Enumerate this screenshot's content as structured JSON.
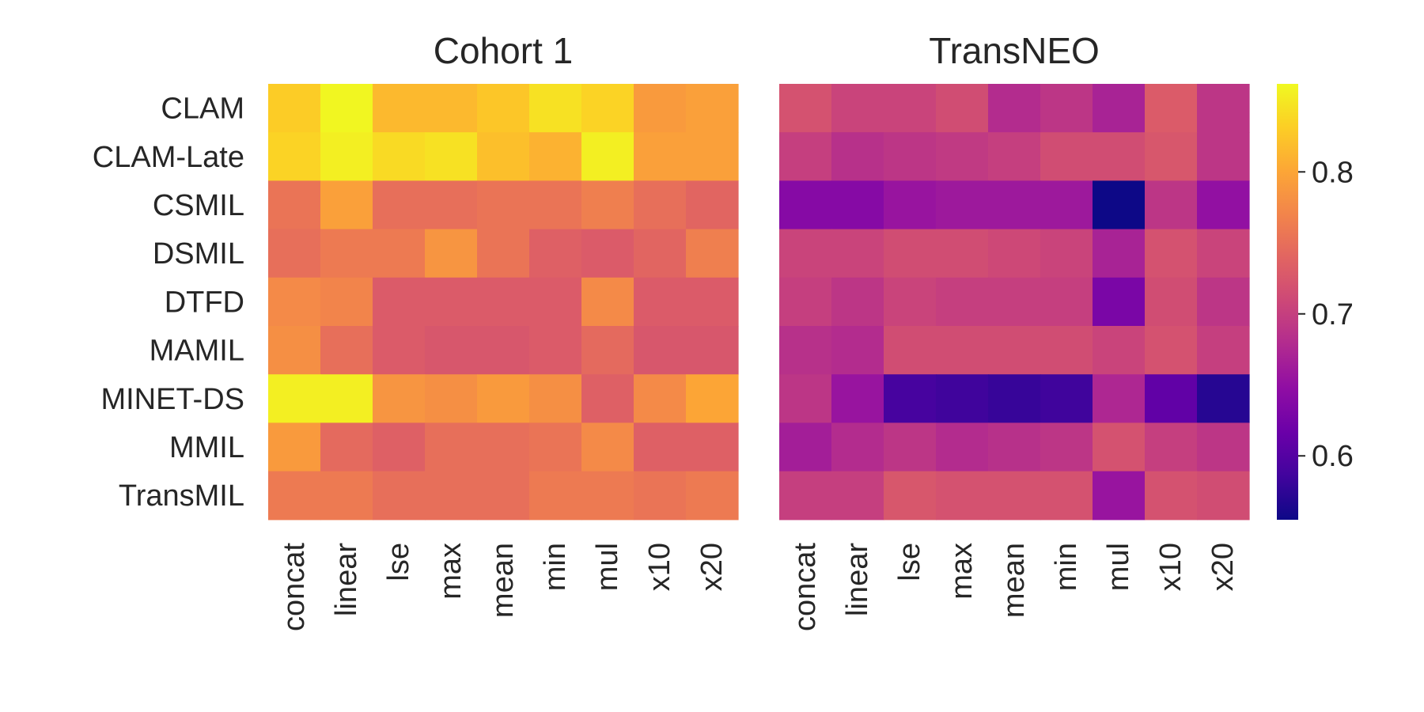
{
  "chart_data": {
    "type": "heatmap",
    "rows": [
      "CLAM",
      "CLAM-Late",
      "CSMIL",
      "DSMIL",
      "DTFD",
      "MAMIL",
      "MINET-DS",
      "MMIL",
      "TransMIL"
    ],
    "columns": [
      "concat",
      "linear",
      "lse",
      "max",
      "mean",
      "min",
      "mul",
      "x10",
      "x20"
    ],
    "colormap": "plasma",
    "vmin": 0.555,
    "vmax": 0.862,
    "colorbar_ticks": [
      "0.6",
      "0.7",
      "0.8"
    ],
    "colorbar_tick_values": [
      0.6,
      0.7,
      0.8
    ],
    "panels": [
      {
        "title": "Cohort 1",
        "values": [
          [
            0.83,
            0.86,
            0.815,
            0.815,
            0.825,
            0.845,
            0.835,
            0.79,
            0.795
          ],
          [
            0.835,
            0.855,
            0.84,
            0.845,
            0.82,
            0.81,
            0.855,
            0.795,
            0.795
          ],
          [
            0.755,
            0.795,
            0.75,
            0.75,
            0.755,
            0.755,
            0.765,
            0.75,
            0.74
          ],
          [
            0.75,
            0.76,
            0.76,
            0.785,
            0.755,
            0.735,
            0.73,
            0.74,
            0.765
          ],
          [
            0.775,
            0.77,
            0.73,
            0.73,
            0.73,
            0.73,
            0.775,
            0.73,
            0.73
          ],
          [
            0.78,
            0.75,
            0.73,
            0.725,
            0.725,
            0.73,
            0.745,
            0.725,
            0.725
          ],
          [
            0.855,
            0.855,
            0.785,
            0.78,
            0.79,
            0.78,
            0.735,
            0.775,
            0.8
          ],
          [
            0.79,
            0.745,
            0.735,
            0.75,
            0.75,
            0.755,
            0.775,
            0.735,
            0.735
          ],
          [
            0.76,
            0.76,
            0.75,
            0.75,
            0.75,
            0.76,
            0.76,
            0.755,
            0.76
          ]
        ]
      },
      {
        "title": "TransNEO",
        "values": [
          [
            0.72,
            0.705,
            0.705,
            0.715,
            0.68,
            0.69,
            0.67,
            0.73,
            0.69
          ],
          [
            0.7,
            0.685,
            0.69,
            0.695,
            0.7,
            0.715,
            0.715,
            0.725,
            0.69
          ],
          [
            0.64,
            0.64,
            0.655,
            0.66,
            0.66,
            0.66,
            0.555,
            0.69,
            0.65
          ],
          [
            0.705,
            0.705,
            0.715,
            0.715,
            0.71,
            0.705,
            0.67,
            0.72,
            0.705
          ],
          [
            0.7,
            0.69,
            0.705,
            0.7,
            0.7,
            0.7,
            0.63,
            0.715,
            0.69
          ],
          [
            0.685,
            0.68,
            0.715,
            0.715,
            0.715,
            0.715,
            0.705,
            0.72,
            0.7
          ],
          [
            0.69,
            0.655,
            0.59,
            0.585,
            0.58,
            0.585,
            0.675,
            0.61,
            0.57
          ],
          [
            0.665,
            0.68,
            0.69,
            0.68,
            0.685,
            0.69,
            0.72,
            0.7,
            0.69
          ],
          [
            0.7,
            0.7,
            0.725,
            0.72,
            0.72,
            0.72,
            0.655,
            0.72,
            0.715
          ]
        ]
      }
    ],
    "grid": false,
    "colorbar_position": "right"
  }
}
